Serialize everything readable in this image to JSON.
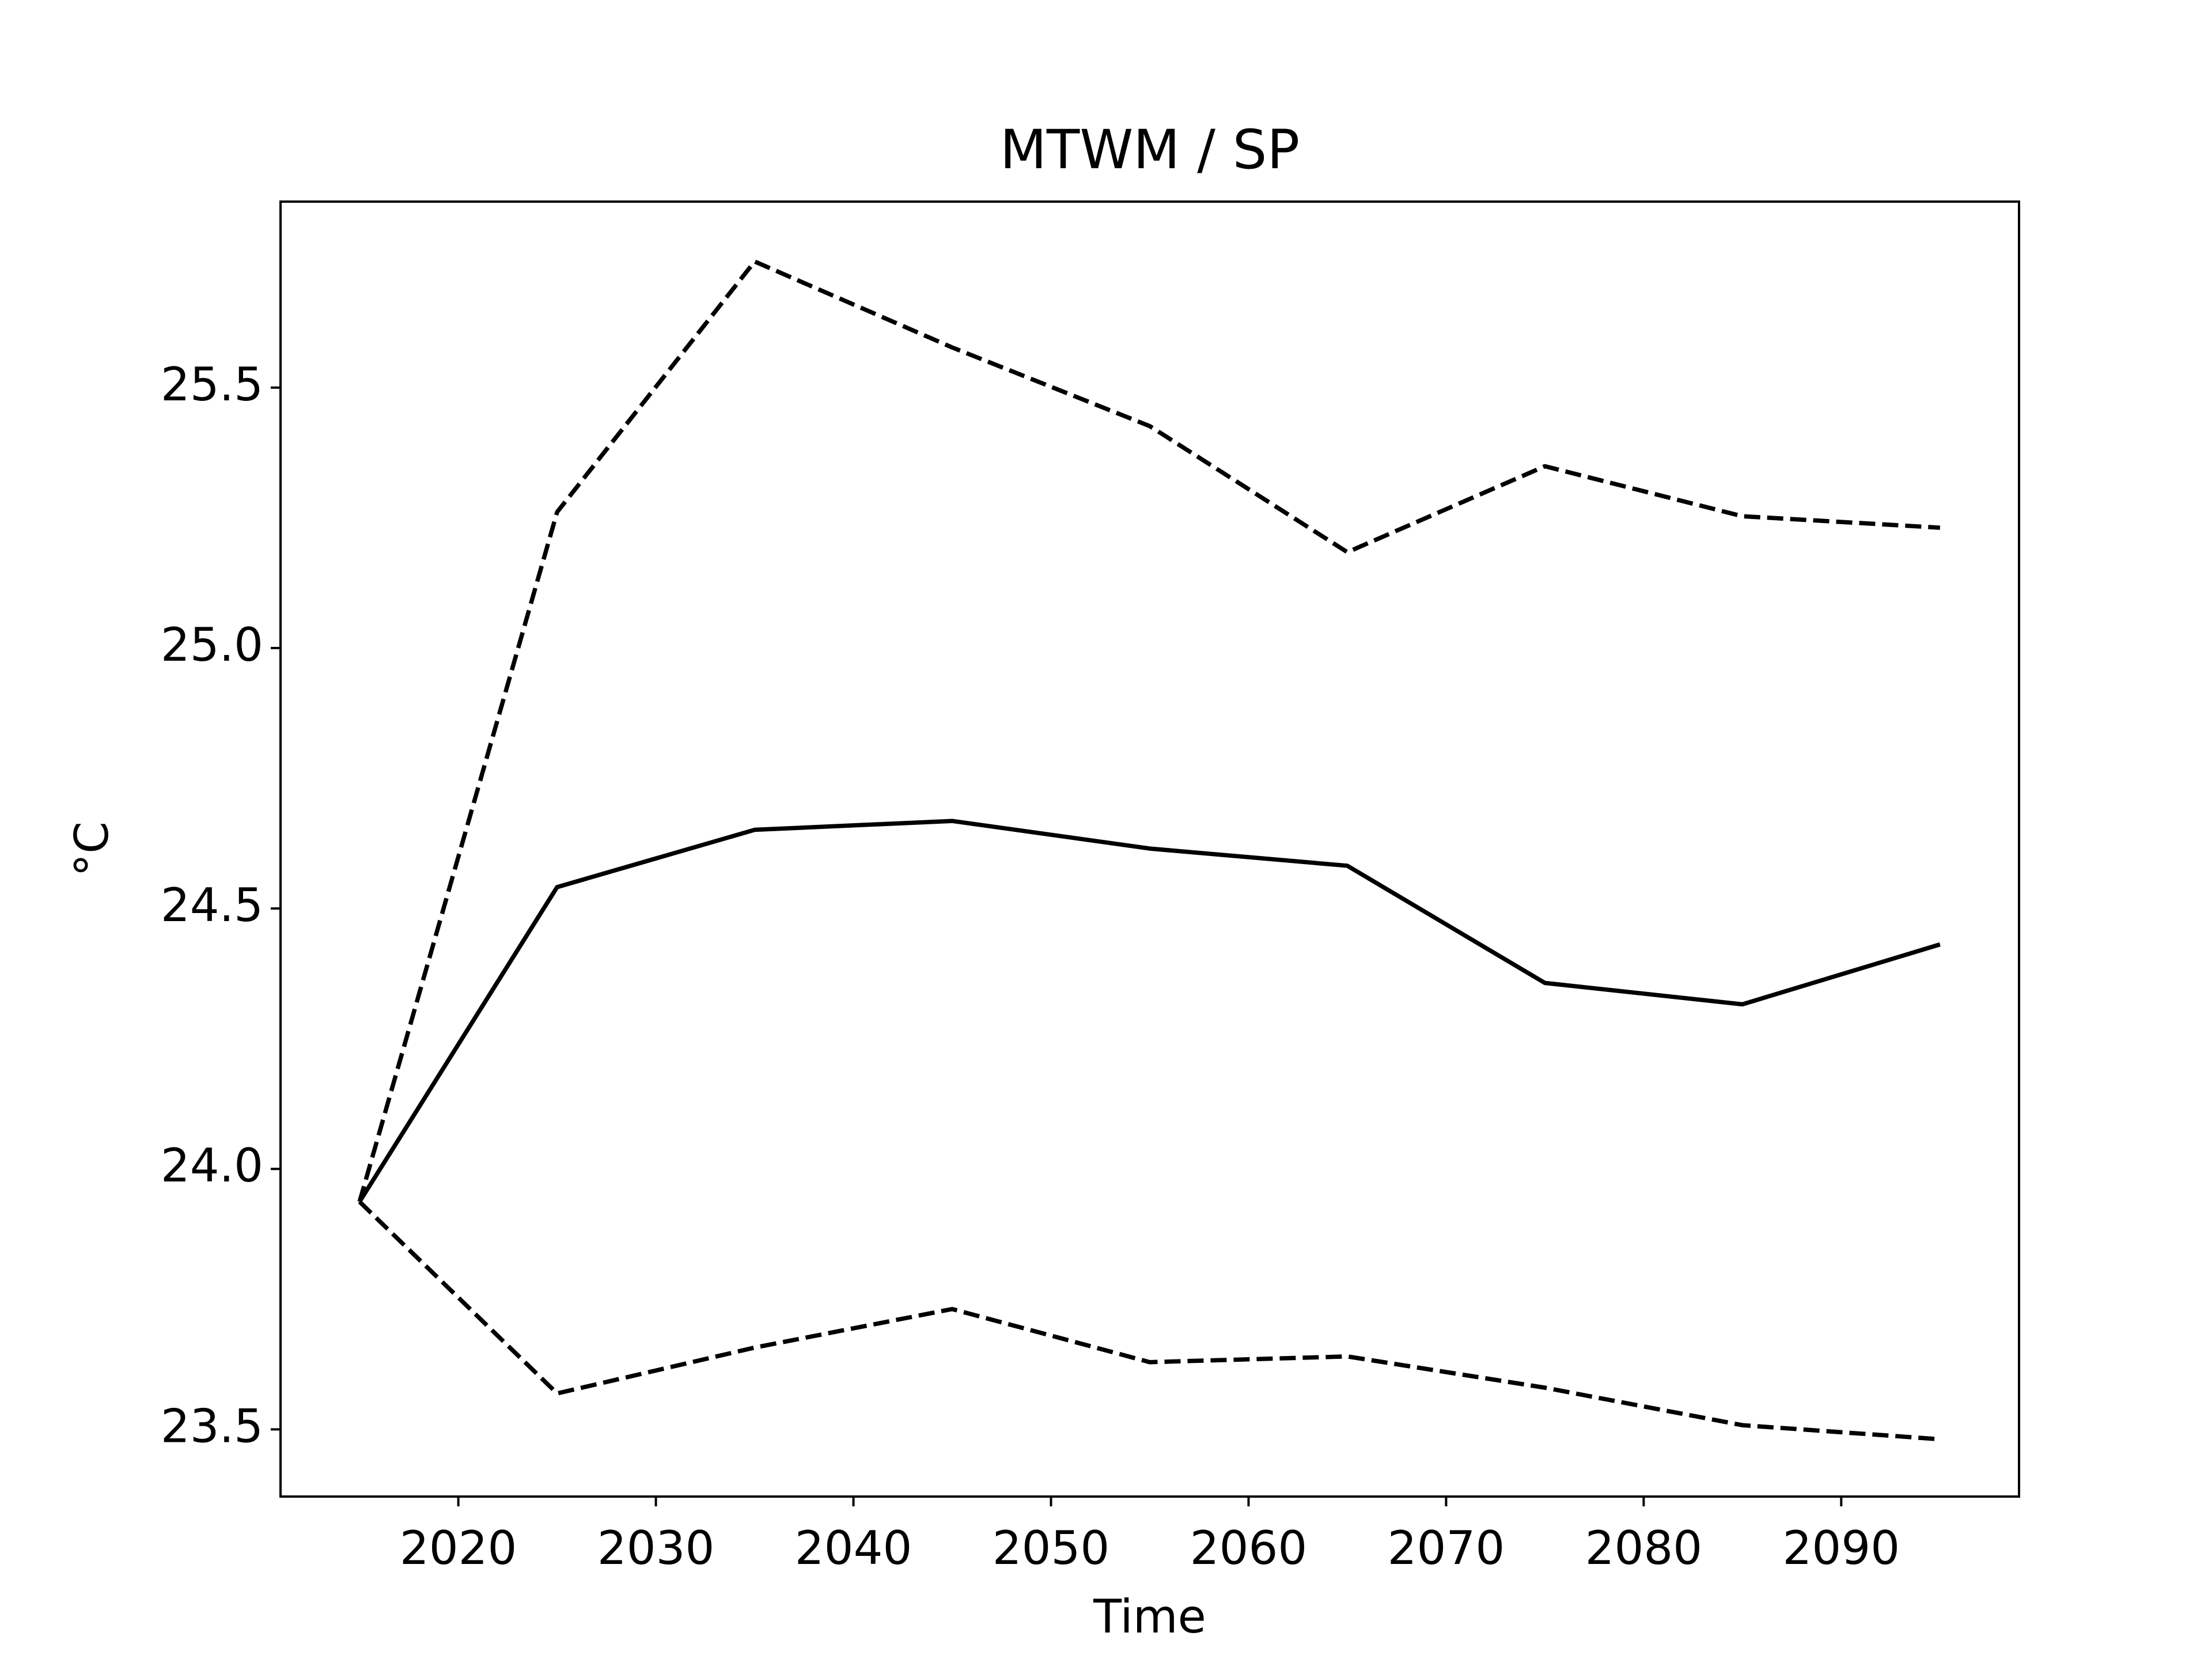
{
  "chart_data": {
    "type": "line",
    "title": "MTWM / SP",
    "x_label": "Time",
    "y_label": "°C",
    "x": [
      2015,
      2025,
      2035,
      2045,
      2055,
      2065,
      2075,
      2085,
      2095
    ],
    "series": [
      {
        "color": "#000000",
        "linestyle": "solid",
        "values": [
          23.937,
          24.541,
          24.651,
          24.668,
          24.615,
          24.582,
          24.357,
          24.316,
          24.431
        ]
      },
      {
        "color": "#000000",
        "linestyle": "dashed",
        "values": [
          23.937,
          25.261,
          25.742,
          25.577,
          25.426,
          25.184,
          25.349,
          25.253,
          25.231
        ]
      },
      {
        "color": "#000000",
        "linestyle": "dashed",
        "values": [
          23.937,
          23.569,
          23.657,
          23.731,
          23.629,
          23.64,
          23.58,
          23.508,
          23.481
        ]
      }
    ],
    "xlim": [
      2011,
      2099
    ],
    "xticks": [
      2020,
      2030,
      2040,
      2050,
      2060,
      2070,
      2080,
      2090
    ],
    "ylim": [
      23.371,
      25.857
    ],
    "yticks": [
      23.5,
      {
        "value": 24,
        "label": "24.0"
      },
      24.5,
      {
        "value": 25,
        "label": "25.0"
      },
      25.5
    ],
    "grid": false
  }
}
